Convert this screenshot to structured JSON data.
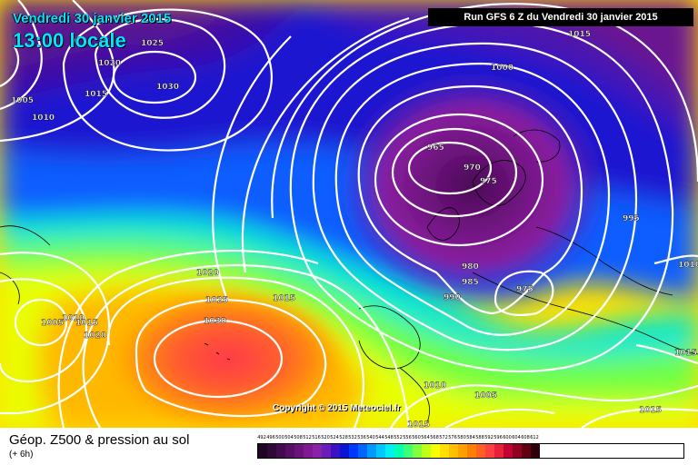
{
  "overlay": {
    "date": "Vendredi 30 janvier 2015",
    "time": "13:00 locale",
    "run": "Run GFS 6 Z du Vendredi 30 janvier 2015",
    "copyright": "Copyright © 2015 Meteociel.fr"
  },
  "footer": {
    "variable": "Géop. Z500 & pression au sol",
    "step": "(+ 6h)"
  },
  "legend": {
    "values": [
      "492",
      "496",
      "500",
      "504",
      "508",
      "512",
      "516",
      "520",
      "524",
      "528",
      "532",
      "536",
      "540",
      "544",
      "548",
      "552",
      "556",
      "560",
      "564",
      "568",
      "572",
      "576",
      "580",
      "584",
      "588",
      "592",
      "596",
      "600",
      "604",
      "608",
      "612"
    ],
    "colors": [
      "#1f0423",
      "#2f0838",
      "#420b4e",
      "#560f64",
      "#6b137a",
      "#7f1a93",
      "#8a22a8",
      "#6a1db8",
      "#3c10c4",
      "#0a14d4",
      "#0038ff",
      "#0066ff",
      "#0099ff",
      "#00c8ff",
      "#00f0f0",
      "#00ffb0",
      "#3cff78",
      "#80ff3c",
      "#c0ff18",
      "#f8ff00",
      "#ffe000",
      "#ffc000",
      "#ffa000",
      "#ff8000",
      "#ff6020",
      "#ff4040",
      "#e8203c",
      "#c00030",
      "#900020",
      "#600010",
      "#300008"
    ]
  },
  "isobars": [
    {
      "value": "1025",
      "id": "1025-nw"
    },
    {
      "value": "1020",
      "id": "1020-nw"
    },
    {
      "value": "1030",
      "id": "1030-n"
    },
    {
      "value": "1005",
      "id": "1005-w"
    },
    {
      "value": "1015",
      "id": "1015-nw"
    },
    {
      "value": "1010",
      "id": "1010-w"
    },
    {
      "value": "1015",
      "id": "1015-ne"
    },
    {
      "value": "1000",
      "id": "1000-n"
    },
    {
      "value": "965",
      "id": "965-low"
    },
    {
      "value": "970",
      "id": "970-low"
    },
    {
      "value": "975",
      "id": "975-low"
    },
    {
      "value": "995",
      "id": "995-e"
    },
    {
      "value": "1010",
      "id": "1010-e"
    },
    {
      "value": "980",
      "id": "980-c"
    },
    {
      "value": "985",
      "id": "985-c"
    },
    {
      "value": "990",
      "id": "990-c"
    },
    {
      "value": "975",
      "id": "975-s"
    },
    {
      "value": "1020",
      "id": "1020-c"
    },
    {
      "value": "1025",
      "id": "1025-c"
    },
    {
      "value": "1015",
      "id": "1015-c"
    },
    {
      "value": "1030",
      "id": "1030-high"
    },
    {
      "value": "1005",
      "id": "1005-sw"
    },
    {
      "value": "1010",
      "id": "1010-sw"
    },
    {
      "value": "1015",
      "id": "1015-sw"
    },
    {
      "value": "1020",
      "id": "1020-sw"
    },
    {
      "value": "1010",
      "id": "1010-s"
    },
    {
      "value": "1005",
      "id": "1005-s"
    },
    {
      "value": "1015",
      "id": "1015-se"
    },
    {
      "value": "1015",
      "id": "1015-se2"
    },
    {
      "value": "1015",
      "id": "1015-bottom"
    }
  ]
}
